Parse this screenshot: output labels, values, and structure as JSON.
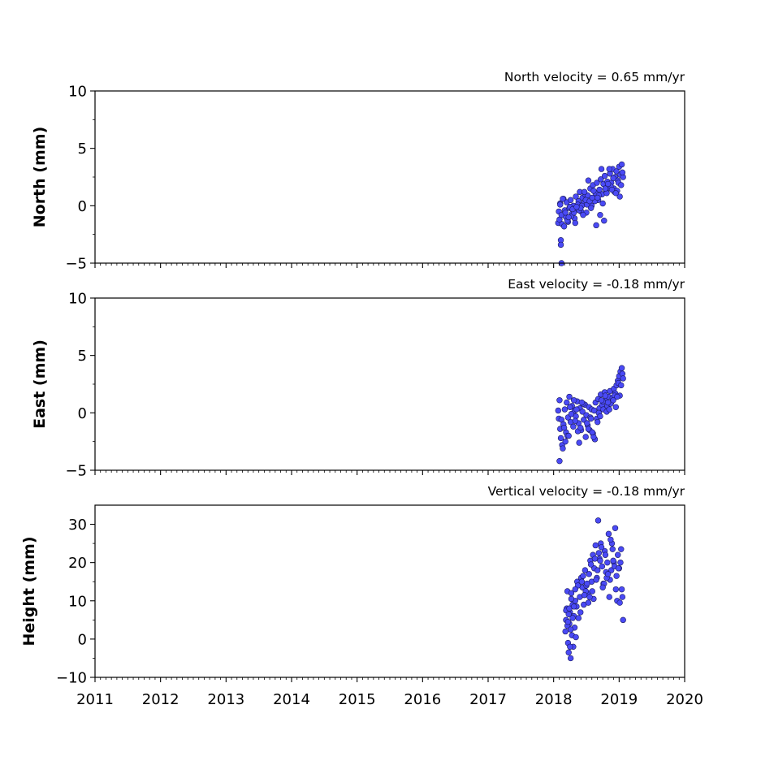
{
  "chart_data": [
    {
      "type": "scatter",
      "title": "North velocity = 0.65 mm/yr",
      "xlabel": "",
      "ylabel": "North (mm)",
      "xlim": [
        2011,
        2020
      ],
      "ylim": [
        -5,
        10
      ],
      "yticks": [
        -5,
        0,
        5,
        10
      ],
      "ytick_labels": [
        "−5",
        "0",
        "5",
        "10"
      ],
      "grid": false,
      "marker_fill": "#4a4af5",
      "marker_edge": "#1a1a60",
      "series": [
        {
          "x": [
            2018.07,
            2018.08,
            2018.09,
            2018.1,
            2018.12,
            2018.13,
            2018.15,
            2018.17,
            2018.19,
            2018.2,
            2018.22,
            2018.24,
            2018.26,
            2018.28,
            2018.3,
            2018.32,
            2018.34,
            2018.36,
            2018.38,
            2018.4,
            2018.42,
            2018.44,
            2018.46,
            2018.48,
            2018.5,
            2018.52,
            2018.54,
            2018.56,
            2018.58,
            2018.6,
            2018.62,
            2018.64,
            2018.66,
            2018.68,
            2018.7,
            2018.72,
            2018.74,
            2018.76,
            2018.78,
            2018.8,
            2018.82,
            2018.84,
            2018.86,
            2018.88,
            2018.9,
            2018.92,
            2018.94,
            2018.96,
            2018.98,
            2019.0,
            2019.02,
            2019.04,
            2019.06,
            2018.11,
            2018.11,
            2018.16,
            2018.21,
            2018.27,
            2018.33,
            2018.39,
            2018.45,
            2018.51,
            2018.57,
            2018.63,
            2018.69,
            2018.75,
            2018.81,
            2018.87,
            2018.93,
            2018.99,
            2019.05,
            2018.14,
            2018.25,
            2018.37,
            2018.49,
            2018.61,
            2018.73,
            2018.85,
            2018.97,
            2018.18,
            2018.31,
            2018.43,
            2018.55,
            2018.67,
            2018.79,
            2018.91,
            2019.03,
            2018.29,
            2018.41,
            2018.53,
            2018.65,
            2018.77,
            2018.89,
            2019.01,
            2018.23,
            2018.35,
            2018.47,
            2018.59,
            2018.71,
            2018.83,
            2018.95,
            2018.1,
            2018.12
          ],
          "y": [
            -1.5,
            -0.5,
            -1.2,
            0.2,
            -0.8,
            -1.6,
            0.6,
            -0.4,
            -1.0,
            0.3,
            -1.4,
            -0.2,
            0.5,
            -0.7,
            0.0,
            -1.1,
            0.8,
            -0.3,
            0.4,
            1.2,
            -0.5,
            0.7,
            0.2,
            1.0,
            -0.6,
            0.9,
            0.3,
            1.5,
            0.0,
            1.8,
            0.6,
            1.1,
            2.0,
            0.5,
            1.4,
            2.3,
            1.0,
            1.9,
            2.6,
            1.3,
            2.1,
            1.6,
            2.8,
            2.0,
            3.2,
            1.5,
            2.5,
            3.0,
            2.2,
            3.4,
            2.7,
            3.6,
            2.5,
            -3.0,
            -3.4,
            -1.8,
            -1.3,
            -0.9,
            -1.5,
            -0.4,
            -0.8,
            0.1,
            -0.2,
            0.4,
            0.9,
            0.2,
            1.1,
            1.7,
            1.2,
            2.0,
            2.9,
            0.6,
            -0.1,
            0.1,
            0.5,
            1.3,
            3.2,
            3.2,
            1.3,
            -0.6,
            -0.6,
            0.0,
            0.4,
            0.7,
            1.5,
            2.4,
            1.8,
            -0.3,
            -0.2,
            2.2,
            -1.7,
            -1.3,
            1.4,
            0.8,
            -1.0,
            -0.1,
            1.2,
            0.7,
            -0.8,
            1.9,
            1.1,
            0.1,
            -5.0
          ]
        }
      ]
    },
    {
      "type": "scatter",
      "title": "East velocity = -0.18 mm/yr",
      "xlabel": "",
      "ylabel": "East (mm)",
      "xlim": [
        2011,
        2020
      ],
      "ylim": [
        -5,
        10
      ],
      "yticks": [
        -5,
        0,
        5,
        10
      ],
      "ytick_labels": [
        "−5",
        "0",
        "5",
        "10"
      ],
      "grid": false,
      "marker_fill": "#4a4af5",
      "marker_edge": "#1a1a60",
      "series": [
        {
          "x": [
            2018.07,
            2018.08,
            2018.09,
            2018.1,
            2018.11,
            2018.12,
            2018.13,
            2018.15,
            2018.17,
            2018.19,
            2018.2,
            2018.22,
            2018.24,
            2018.26,
            2018.28,
            2018.3,
            2018.32,
            2018.34,
            2018.36,
            2018.38,
            2018.4,
            2018.42,
            2018.44,
            2018.46,
            2018.48,
            2018.5,
            2018.52,
            2018.54,
            2018.56,
            2018.58,
            2018.6,
            2018.62,
            2018.64,
            2018.66,
            2018.68,
            2018.7,
            2018.72,
            2018.74,
            2018.76,
            2018.78,
            2018.8,
            2018.82,
            2018.84,
            2018.86,
            2018.88,
            2018.9,
            2018.92,
            2018.94,
            2018.96,
            2018.98,
            2019.0,
            2019.02,
            2019.04,
            2019.05,
            2019.06,
            2018.09,
            2018.14,
            2018.16,
            2018.21,
            2018.27,
            2018.33,
            2018.39,
            2018.45,
            2018.51,
            2018.57,
            2018.63,
            2018.69,
            2018.75,
            2018.81,
            2018.87,
            2018.93,
            2018.99,
            2019.03,
            2019.01,
            2018.18,
            2018.25,
            2018.31,
            2018.37,
            2018.43,
            2018.49,
            2018.55,
            2018.61,
            2018.67,
            2018.73,
            2018.79,
            2018.85,
            2018.91,
            2018.97,
            2018.23,
            2018.35,
            2018.41,
            2018.53,
            2018.59,
            2018.71,
            2018.83,
            2018.95
          ],
          "y": [
            0.2,
            -0.5,
            1.1,
            -1.4,
            -2.2,
            -0.6,
            -2.8,
            -1.0,
            0.3,
            -1.7,
            0.9,
            -0.4,
            1.4,
            -0.8,
            0.6,
            -1.2,
            0.2,
            -0.3,
            1.0,
            -0.9,
            0.4,
            -1.5,
            0.1,
            -0.6,
            0.7,
            -0.2,
            -1.1,
            0.5,
            -0.4,
            0.3,
            -1.8,
            0.2,
            0.9,
            -0.5,
            1.2,
            0.4,
            1.6,
            0.7,
            0.3,
            1.8,
            1.1,
            0.6,
            1.4,
            1.9,
            0.9,
            1.3,
            2.1,
            1.7,
            2.4,
            2.8,
            3.2,
            3.6,
            3.9,
            3.4,
            3.0,
            -4.2,
            -3.1,
            -1.3,
            -2.0,
            -0.1,
            -0.7,
            -2.6,
            0.8,
            -0.9,
            -0.5,
            -2.3,
            0.0,
            1.0,
            0.1,
            0.8,
            1.5,
            2.6,
            2.4,
            1.5,
            -2.5,
            0.5,
            1.1,
            -1.6,
            0.9,
            -2.1,
            -1.5,
            -2.1,
            -0.8,
            1.1,
            1.5,
            0.3,
            1.1,
            1.4,
            -2.0,
            0.3,
            -1.3,
            -1.4,
            -1.7,
            -0.3,
            0.9,
            0.5
          ]
        }
      ]
    },
    {
      "type": "scatter",
      "title": "Vertical velocity = -0.18 mm/yr",
      "xlabel": "",
      "ylabel": "Height (mm)",
      "xlim": [
        2011,
        2020
      ],
      "ylim": [
        -10,
        35
      ],
      "yticks": [
        -10,
        0,
        10,
        20,
        30
      ],
      "ytick_labels": [
        "−10",
        "0",
        "10",
        "20",
        "30"
      ],
      "xticks": [
        2011,
        2012,
        2013,
        2014,
        2015,
        2016,
        2017,
        2018,
        2019,
        2020
      ],
      "xtick_labels": [
        "2011",
        "2012",
        "2013",
        "2014",
        "2015",
        "2016",
        "2017",
        "2018",
        "2019",
        "2020"
      ],
      "grid": false,
      "marker_fill": "#4a4af5",
      "marker_edge": "#1a1a60",
      "series": [
        {
          "x": [
            2018.18,
            2018.19,
            2018.2,
            2018.21,
            2018.22,
            2018.23,
            2018.24,
            2018.25,
            2018.26,
            2018.27,
            2018.28,
            2018.29,
            2018.3,
            2018.31,
            2018.32,
            2018.33,
            2018.34,
            2018.35,
            2018.36,
            2018.38,
            2018.4,
            2018.42,
            2018.44,
            2018.46,
            2018.48,
            2018.5,
            2018.52,
            2018.54,
            2018.56,
            2018.58,
            2018.6,
            2018.62,
            2018.64,
            2018.66,
            2018.68,
            2018.7,
            2018.72,
            2018.74,
            2018.76,
            2018.78,
            2018.8,
            2018.82,
            2018.84,
            2018.86,
            2018.88,
            2018.9,
            2018.92,
            2018.94,
            2018.96,
            2018.98,
            2019.0,
            2019.02,
            2019.04,
            2019.05,
            2019.06,
            2018.19,
            2018.21,
            2018.23,
            2018.25,
            2018.27,
            2018.37,
            2018.41,
            2018.45,
            2018.49,
            2018.53,
            2018.57,
            2018.61,
            2018.65,
            2018.69,
            2018.73,
            2018.77,
            2018.81,
            2018.85,
            2018.89,
            2018.93,
            2018.97,
            2019.01,
            2019.03,
            2018.22,
            2018.24,
            2018.26,
            2018.29,
            2018.31,
            2018.33,
            2018.43,
            2018.47,
            2018.51,
            2018.55,
            2018.59,
            2018.63,
            2018.67,
            2018.71,
            2018.75,
            2018.79,
            2018.83,
            2018.87,
            2018.91,
            2018.95,
            2018.99
          ],
          "y": [
            2.0,
            5.0,
            8.0,
            12.5,
            -1.0,
            -3.5,
            4.0,
            7.0,
            -5.0,
            12.0,
            1.0,
            9.0,
            -2.0,
            6.0,
            3.0,
            10.0,
            0.5,
            8.5,
            15.0,
            5.5,
            11.0,
            16.0,
            13.5,
            9.0,
            18.0,
            14.0,
            12.0,
            17.0,
            20.5,
            15.0,
            22.0,
            18.5,
            24.5,
            16.0,
            31.0,
            21.0,
            25.0,
            19.0,
            14.5,
            23.0,
            17.5,
            20.0,
            27.5,
            15.5,
            18.0,
            23.5,
            20.0,
            29.0,
            16.5,
            22.0,
            18.5,
            20.0,
            13.0,
            11.0,
            5.0,
            7.5,
            3.5,
            6.5,
            -2.0,
            10.5,
            14.0,
            7.0,
            16.5,
            12.5,
            9.5,
            19.5,
            10.5,
            15.5,
            22.5,
            24.0,
            14.5,
            16.0,
            11.0,
            25.0,
            19.0,
            10.0,
            9.5,
            23.5,
            4.5,
            8.0,
            2.5,
            5.5,
            8.5,
            13.0,
            15.0,
            11.5,
            14.5,
            11.0,
            12.5,
            21.0,
            18.0,
            20.5,
            13.5,
            22.0,
            17.0,
            26.0,
            20.5,
            13.0,
            18.5
          ]
        }
      ]
    }
  ]
}
